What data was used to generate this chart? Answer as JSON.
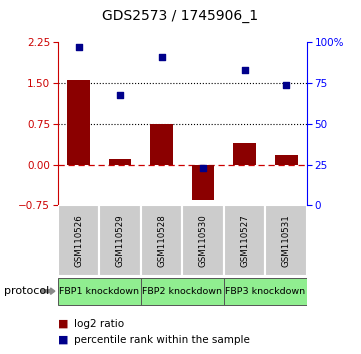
{
  "title": "GDS2573 / 1745906_1",
  "samples": [
    "GSM110526",
    "GSM110529",
    "GSM110528",
    "GSM110530",
    "GSM110527",
    "GSM110531"
  ],
  "log2_ratio": [
    1.55,
    0.1,
    0.75,
    -0.65,
    0.4,
    0.18
  ],
  "percentile_rank": [
    97,
    68,
    91,
    23,
    83,
    74
  ],
  "proto_groups": [
    {
      "label": "FBP1 knockdown",
      "start": 0,
      "end": 1
    },
    {
      "label": "FBP2 knockdown",
      "start": 2,
      "end": 3
    },
    {
      "label": "FBP3 knockdown",
      "start": 4,
      "end": 5
    }
  ],
  "ylim_left": [
    -0.75,
    2.25
  ],
  "ylim_right": [
    0,
    100
  ],
  "yticks_left": [
    -0.75,
    0,
    0.75,
    1.5,
    2.25
  ],
  "yticks_right": [
    0,
    25,
    50,
    75,
    100
  ],
  "hlines_dotted": [
    0.75,
    1.5
  ],
  "hline_dashed": 0.0,
  "bar_color": "#8B0000",
  "dot_color": "#00008B",
  "legend_bar_label": "log2 ratio",
  "legend_dot_label": "percentile rank within the sample",
  "proto_color": "#90EE90",
  "sample_box_color": "#cccccc",
  "protocol_label": "protocol"
}
